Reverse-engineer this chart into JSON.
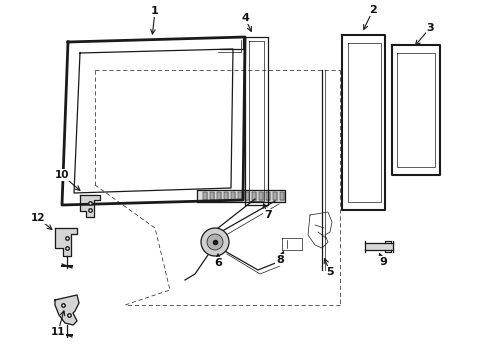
{
  "background_color": "#ffffff",
  "line_color": "#1a1a1a",
  "label_color": "#111111",
  "fig_w": 4.9,
  "fig_h": 3.6,
  "dpi": 100
}
